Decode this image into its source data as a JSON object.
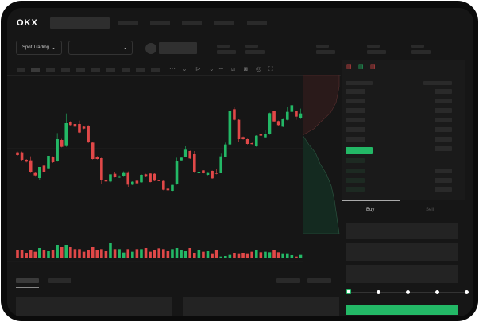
{
  "header": {
    "logo": "OKX"
  },
  "toolbar": {
    "market_select": "Spot Trading",
    "market_chevron": "⌄",
    "pair_chevron": "⌄"
  },
  "trade": {
    "buy_tab": "Buy",
    "sell_tab": "Sell"
  },
  "colors": {
    "up": "#23b866",
    "down": "#e04848",
    "background": "#161616",
    "accent": "#23b866"
  },
  "slider": {
    "percent": 0,
    "stops": [
      0,
      25,
      50,
      75,
      100
    ]
  },
  "chart_data": {
    "type": "candlestick",
    "grid": true,
    "candles": [
      [
        185,
        175,
        188,
        172
      ],
      [
        185,
        157,
        188,
        154
      ],
      [
        157,
        150,
        160,
        147
      ],
      [
        155,
        112,
        170,
        110
      ],
      [
        110,
        98,
        112,
        96
      ],
      [
        88,
        130,
        90,
        80
      ],
      [
        135,
        112,
        138,
        110
      ],
      [
        125,
        172,
        128,
        122
      ],
      [
        168,
        148,
        170,
        145
      ],
      [
        152,
        235,
        258,
        150
      ],
      [
        232,
        206,
        236,
        204
      ],
      [
        209,
        295,
        332,
        206
      ],
      [
        300,
        288,
        303,
        286
      ],
      [
        292,
        282,
        295,
        280
      ],
      [
        292,
        260,
        305,
        258
      ],
      [
        282,
        275,
        284,
        273
      ],
      [
        285,
        223,
        288,
        220
      ],
      [
        222,
        160,
        225,
        158
      ],
      [
        169,
        160,
        171,
        158
      ],
      [
        163,
        80,
        165,
        65
      ],
      [
        82,
        75,
        85,
        73
      ],
      [
        75,
        102,
        78,
        72
      ],
      [
        104,
        92,
        112,
        90
      ],
      [
        90,
        95,
        98,
        88
      ],
      [
        97,
        110,
        113,
        95
      ],
      [
        110,
        63,
        113,
        55
      ],
      [
        63,
        74,
        76,
        61
      ],
      [
        78,
        68,
        80,
        66
      ],
      [
        72,
        100,
        103,
        70
      ],
      [
        102,
        96,
        104,
        94
      ],
      [
        105,
        73,
        107,
        71
      ],
      [
        104,
        78,
        106,
        76
      ],
      [
        80,
        78,
        81,
        77
      ],
      [
        77,
        44,
        79,
        42
      ],
      [
        48,
        42,
        49,
        41
      ],
      [
        40,
        62,
        63,
        38
      ],
      [
        65,
        152,
        165,
        63
      ],
      [
        155,
        165,
        167,
        153
      ],
      [
        168,
        195,
        208,
        166
      ],
      [
        190,
        162,
        192,
        160
      ],
      [
        178,
        112,
        190,
        110
      ],
      [
        108,
        112,
        114,
        104
      ],
      [
        117,
        107,
        118,
        105
      ],
      [
        100,
        110,
        111,
        98
      ],
      [
        115,
        87,
        117,
        85
      ],
      [
        108,
        104,
        122,
        102
      ],
      [
        108,
        170,
        180,
        106
      ],
      [
        168,
        215,
        222,
        166
      ],
      [
        215,
        340,
        385,
        213
      ],
      [
        348,
        308,
        355,
        305
      ],
      [
        308,
        235,
        310,
        225
      ],
      [
        243,
        235,
        245,
        233
      ],
      [
        235,
        217,
        237,
        215
      ],
      [
        220,
        217,
        222,
        215
      ],
      [
        208,
        248,
        250,
        206
      ],
      [
        254,
        248,
        265,
        246
      ],
      [
        242,
        254,
        270,
        240
      ],
      [
        254,
        333,
        335,
        252
      ],
      [
        340,
        302,
        342,
        300
      ],
      [
        303,
        288,
        305,
        286
      ],
      [
        282,
        310,
        312,
        280
      ],
      [
        308,
        338,
        358,
        306
      ],
      [
        338,
        363,
        378,
        336
      ],
      [
        340,
        320,
        342,
        308
      ],
      [
        313,
        332,
        350,
        311
      ]
    ],
    "candle_fields": [
      "open",
      "close",
      "high",
      "low"
    ],
    "volume": [
      32,
      33,
      21,
      33,
      25,
      39,
      30,
      27,
      30,
      51,
      42,
      51,
      42,
      35,
      35,
      25,
      31,
      42,
      31,
      35,
      27,
      57,
      35,
      35,
      22,
      35,
      25,
      35,
      35,
      39,
      25,
      31,
      38,
      35,
      27,
      35,
      39,
      33,
      27,
      39,
      21,
      31,
      25,
      27,
      19,
      31,
      7,
      9,
      13,
      21,
      19,
      21,
      19,
      25,
      31,
      23,
      25,
      23,
      31,
      23,
      19,
      19,
      12,
      7,
      13
    ]
  }
}
